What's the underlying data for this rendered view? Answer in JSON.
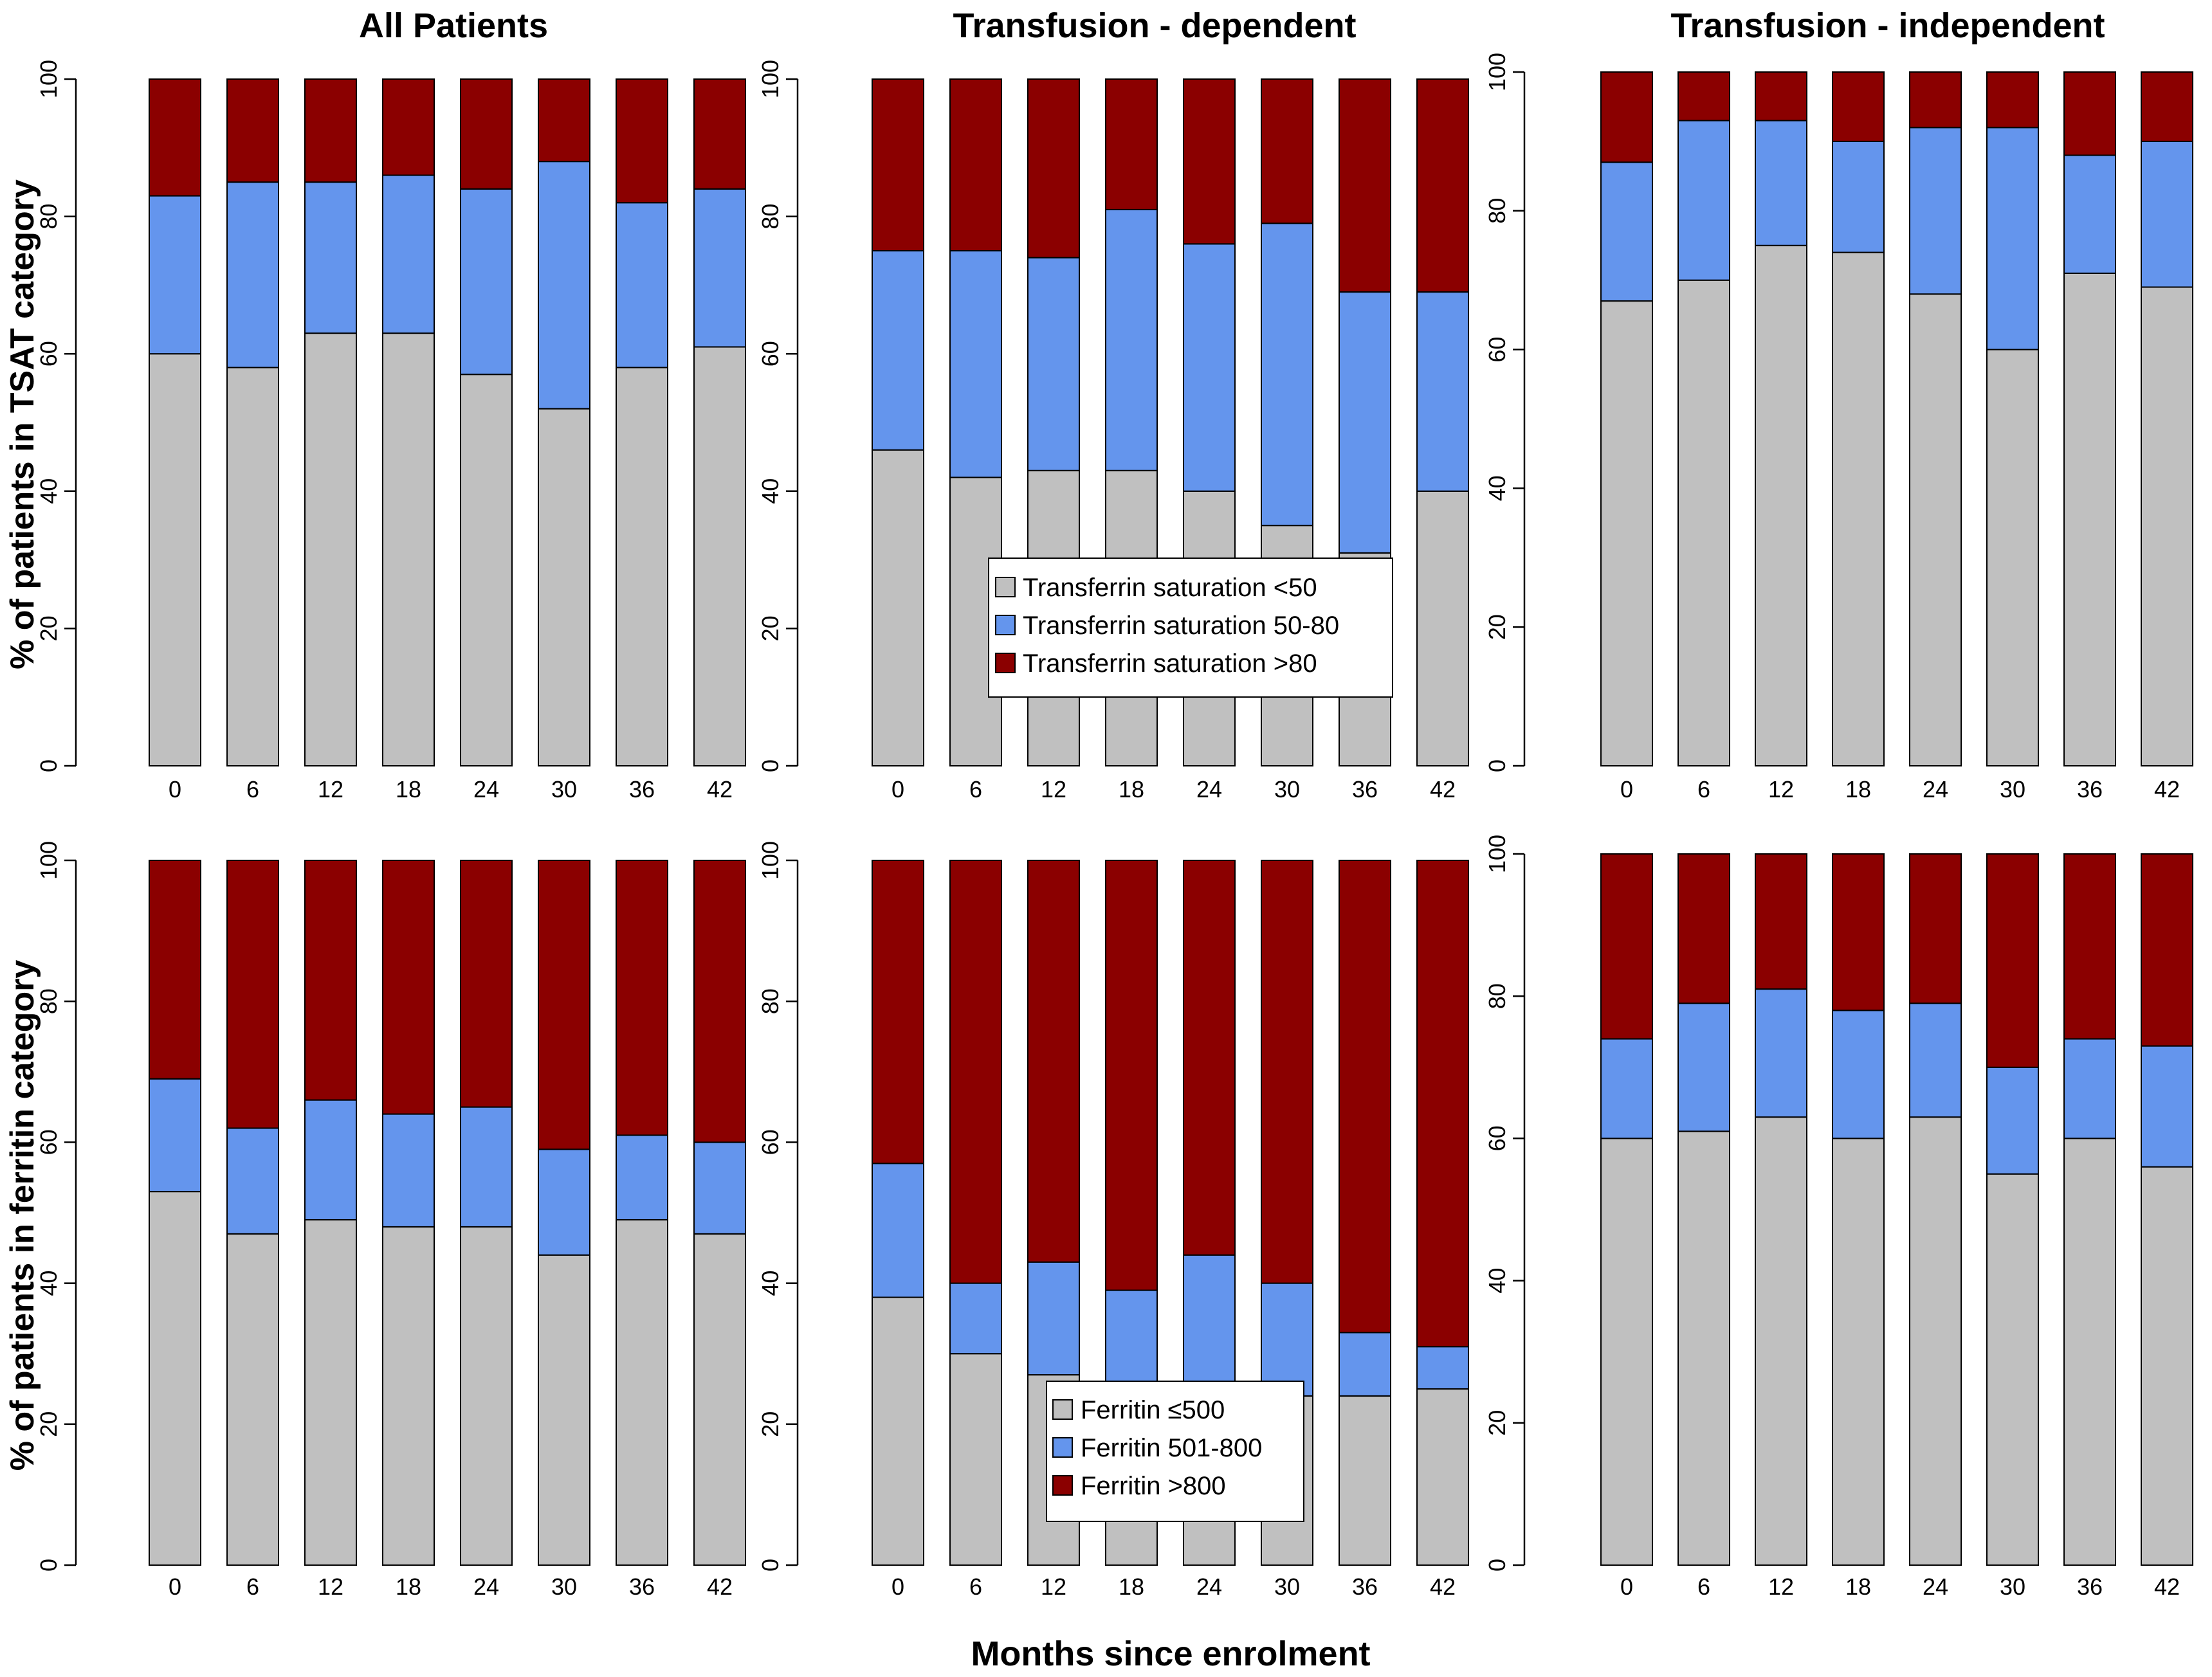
{
  "figure": {
    "column_titles": [
      "All Patients",
      "Transfusion - dependent",
      "Transfusion - independent"
    ],
    "row_labels": [
      "% of patients in TSAT category",
      "% of patients in ferritin category"
    ],
    "xlabel": "Months since enrolment"
  },
  "legends": {
    "tsat": [
      "Transferrin saturation <50",
      "Transferrin saturation 50-80",
      "Transferrin saturation >80"
    ],
    "ferritin": [
      "Ferritin ≤500",
      "Ferritin 501-800",
      "Ferritin >800"
    ]
  },
  "colors": {
    "low": "#c0c0c0",
    "mid": "#6495ed",
    "high": "#8b0000",
    "axis": "#000000"
  },
  "chart_data": [
    {
      "type": "bar",
      "stacked": true,
      "panel": "top-left",
      "title": "All Patients",
      "ylabel": "% of patients in TSAT category",
      "ylim": [
        0,
        100
      ],
      "yticks": [
        0,
        20,
        40,
        60,
        80,
        100
      ],
      "categories": [
        "0",
        "6",
        "12",
        "18",
        "24",
        "30",
        "36",
        "42"
      ],
      "series": [
        {
          "name": "Transferrin saturation <50",
          "values": [
            60,
            58,
            63,
            63,
            57,
            52,
            58,
            61
          ]
        },
        {
          "name": "Transferrin saturation 50-80",
          "values": [
            23,
            27,
            22,
            23,
            27,
            36,
            24,
            23
          ]
        },
        {
          "name": "Transferrin saturation >80",
          "values": [
            17,
            15,
            15,
            14,
            16,
            12,
            18,
            16
          ]
        }
      ]
    },
    {
      "type": "bar",
      "stacked": true,
      "panel": "top-middle",
      "title": "Transfusion - dependent",
      "ylim": [
        0,
        100
      ],
      "yticks": [
        0,
        20,
        40,
        60,
        80,
        100
      ],
      "categories": [
        "0",
        "6",
        "12",
        "18",
        "24",
        "30",
        "36",
        "42"
      ],
      "series": [
        {
          "name": "Transferrin saturation <50",
          "values": [
            46,
            42,
            43,
            43,
            40,
            35,
            31,
            40
          ]
        },
        {
          "name": "Transferrin saturation 50-80",
          "values": [
            29,
            33,
            31,
            38,
            36,
            44,
            38,
            29
          ]
        },
        {
          "name": "Transferrin saturation >80",
          "values": [
            25,
            25,
            26,
            19,
            24,
            21,
            31,
            31
          ]
        }
      ]
    },
    {
      "type": "bar",
      "stacked": true,
      "panel": "top-right",
      "title": "Transfusion - independent",
      "ylim": [
        0,
        100
      ],
      "yticks": [
        0,
        20,
        40,
        60,
        80,
        100
      ],
      "categories": [
        "0",
        "6",
        "12",
        "18",
        "24",
        "30",
        "36",
        "42"
      ],
      "series": [
        {
          "name": "Transferrin saturation <50",
          "values": [
            67,
            70,
            75,
            74,
            68,
            60,
            71,
            69
          ]
        },
        {
          "name": "Transferrin saturation 50-80",
          "values": [
            20,
            23,
            18,
            16,
            24,
            32,
            17,
            21
          ]
        },
        {
          "name": "Transferrin saturation >80",
          "values": [
            13,
            7,
            7,
            10,
            8,
            8,
            12,
            10
          ]
        }
      ]
    },
    {
      "type": "bar",
      "stacked": true,
      "panel": "bottom-left",
      "ylabel": "% of patients in ferritin category",
      "ylim": [
        0,
        100
      ],
      "yticks": [
        0,
        20,
        40,
        60,
        80,
        100
      ],
      "categories": [
        "0",
        "6",
        "12",
        "18",
        "24",
        "30",
        "36",
        "42"
      ],
      "series": [
        {
          "name": "Ferritin ≤500",
          "values": [
            53,
            47,
            49,
            48,
            48,
            44,
            49,
            47
          ]
        },
        {
          "name": "Ferritin 501-800",
          "values": [
            16,
            15,
            17,
            16,
            17,
            15,
            12,
            13
          ]
        },
        {
          "name": "Ferritin >800",
          "values": [
            31,
            38,
            34,
            36,
            35,
            41,
            39,
            40
          ]
        }
      ]
    },
    {
      "type": "bar",
      "stacked": true,
      "panel": "bottom-middle",
      "ylim": [
        0,
        100
      ],
      "yticks": [
        0,
        20,
        40,
        60,
        80,
        100
      ],
      "categories": [
        "0",
        "6",
        "12",
        "18",
        "24",
        "30",
        "36",
        "42"
      ],
      "series": [
        {
          "name": "Ferritin ≤500",
          "values": [
            38,
            30,
            27,
            26,
            26,
            24,
            24,
            25
          ]
        },
        {
          "name": "Ferritin 501-800",
          "values": [
            19,
            10,
            16,
            13,
            18,
            16,
            9,
            6
          ]
        },
        {
          "name": "Ferritin >800",
          "values": [
            43,
            60,
            57,
            61,
            56,
            60,
            67,
            69
          ]
        }
      ]
    },
    {
      "type": "bar",
      "stacked": true,
      "panel": "bottom-right",
      "xlabel": "Months since enrolment",
      "ylim": [
        0,
        100
      ],
      "yticks": [
        0,
        20,
        40,
        60,
        80,
        100
      ],
      "categories": [
        "0",
        "6",
        "12",
        "18",
        "24",
        "30",
        "36",
        "42"
      ],
      "series": [
        {
          "name": "Ferritin ≤500",
          "values": [
            60,
            61,
            63,
            60,
            63,
            55,
            60,
            56
          ]
        },
        {
          "name": "Ferritin 501-800",
          "values": [
            14,
            18,
            18,
            18,
            16,
            15,
            14,
            17
          ]
        },
        {
          "name": "Ferritin >800",
          "values": [
            26,
            21,
            19,
            22,
            21,
            30,
            26,
            27
          ]
        }
      ]
    }
  ]
}
